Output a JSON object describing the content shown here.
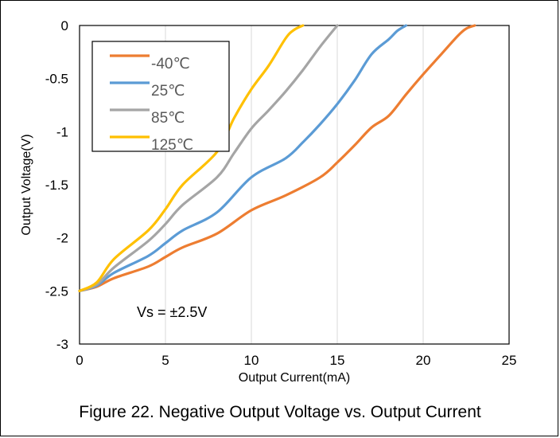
{
  "chart_data": {
    "type": "line",
    "xlabel": "Output Current(mA)",
    "ylabel": "Output Voltage(V)",
    "xlim": [
      0,
      25
    ],
    "ylim": [
      -3,
      0
    ],
    "xticks": [
      "0",
      "5",
      "10",
      "15",
      "20",
      "25"
    ],
    "yticks": [
      "0",
      "-0.5",
      "-1",
      "-1.5",
      "-2",
      "-2.5",
      "-3"
    ],
    "grid": "vertical",
    "legend_position": "top-left",
    "annotation": "Vs = ±2.5V",
    "series": [
      {
        "name": "-40℃",
        "color": "#ED7D31",
        "points": [
          [
            0,
            -2.5
          ],
          [
            1,
            -2.46
          ],
          [
            2,
            -2.38
          ],
          [
            4,
            -2.27
          ],
          [
            5,
            -2.18
          ],
          [
            6,
            -2.09
          ],
          [
            8,
            -1.96
          ],
          [
            10,
            -1.74
          ],
          [
            12,
            -1.6
          ],
          [
            14,
            -1.43
          ],
          [
            15,
            -1.29
          ],
          [
            16,
            -1.13
          ],
          [
            17,
            -0.96
          ],
          [
            18,
            -0.85
          ],
          [
            19,
            -0.65
          ],
          [
            20,
            -0.46
          ],
          [
            21,
            -0.28
          ],
          [
            22,
            -0.1
          ],
          [
            22.5,
            -0.03
          ],
          [
            23,
            0
          ]
        ]
      },
      {
        "name": "25℃",
        "color": "#5B9BD5",
        "points": [
          [
            0,
            -2.5
          ],
          [
            1,
            -2.45
          ],
          [
            2,
            -2.33
          ],
          [
            4,
            -2.17
          ],
          [
            5,
            -2.05
          ],
          [
            6,
            -1.93
          ],
          [
            8,
            -1.76
          ],
          [
            10,
            -1.43
          ],
          [
            12,
            -1.25
          ],
          [
            13,
            -1.1
          ],
          [
            14,
            -0.93
          ],
          [
            15,
            -0.74
          ],
          [
            16,
            -0.52
          ],
          [
            17,
            -0.27
          ],
          [
            18,
            -0.13
          ],
          [
            18.5,
            -0.05
          ],
          [
            19,
            0
          ]
        ]
      },
      {
        "name": "85℃",
        "color": "#A5A5A5",
        "points": [
          [
            0,
            -2.5
          ],
          [
            1,
            -2.44
          ],
          [
            2,
            -2.28
          ],
          [
            4,
            -2.03
          ],
          [
            5,
            -1.87
          ],
          [
            6,
            -1.69
          ],
          [
            8,
            -1.43
          ],
          [
            9,
            -1.2
          ],
          [
            10,
            -0.97
          ],
          [
            11,
            -0.8
          ],
          [
            12,
            -0.62
          ],
          [
            13,
            -0.42
          ],
          [
            14,
            -0.2
          ],
          [
            15,
            0
          ]
        ]
      },
      {
        "name": "125℃",
        "color": "#FFC000",
        "points": [
          [
            0,
            -2.5
          ],
          [
            1,
            -2.42
          ],
          [
            2,
            -2.2
          ],
          [
            4,
            -1.93
          ],
          [
            5,
            -1.73
          ],
          [
            6,
            -1.5
          ],
          [
            8,
            -1.19
          ],
          [
            9,
            -0.87
          ],
          [
            10,
            -0.6
          ],
          [
            11,
            -0.38
          ],
          [
            12,
            -0.12
          ],
          [
            12.5,
            -0.04
          ],
          [
            13,
            0
          ]
        ]
      }
    ]
  },
  "caption": "Figure 22. Negative Output Voltage vs. Output Current"
}
